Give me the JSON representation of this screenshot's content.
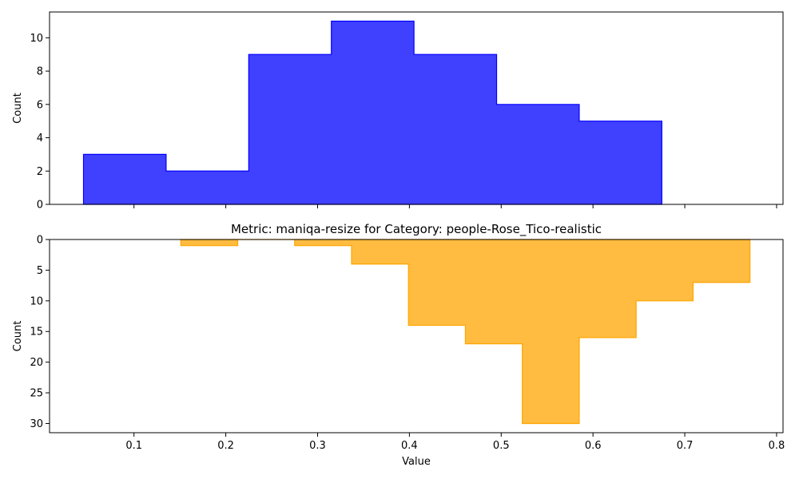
{
  "chart_data": [
    {
      "type": "histogram",
      "title": "",
      "xlabel": "",
      "ylabel": "Count",
      "xlim": [
        0.008,
        0.807
      ],
      "ylim": [
        0,
        11.55
      ],
      "y_inverted": false,
      "x_ticks": [
        0.1,
        0.2,
        0.3,
        0.4,
        0.5,
        0.6,
        0.7,
        0.8
      ],
      "x_tick_labels_visible": false,
      "y_ticks": [
        0,
        2,
        4,
        6,
        8,
        10
      ],
      "series": [
        {
          "color": "#0000ff",
          "fill_opacity": 0.75,
          "bin_edges": [
            0.045,
            0.135,
            0.225,
            0.315,
            0.405,
            0.495,
            0.585,
            0.675
          ],
          "counts": [
            3,
            2,
            9,
            11,
            9,
            6,
            5
          ]
        }
      ]
    },
    {
      "type": "histogram",
      "title": "Metric: maniqa-resize for Category: people-Rose_Tico-realistic",
      "xlabel": "Value",
      "ylabel": "Count",
      "xlim": [
        0.008,
        0.807
      ],
      "ylim": [
        0,
        31.5
      ],
      "y_inverted": true,
      "x_ticks": [
        0.1,
        0.2,
        0.3,
        0.4,
        0.5,
        0.6,
        0.7,
        0.8
      ],
      "x_tick_labels_visible": true,
      "y_ticks": [
        0,
        5,
        10,
        15,
        20,
        25,
        30
      ],
      "series": [
        {
          "color": "#ffa500",
          "fill_opacity": 0.75,
          "bin_edges": [
            0.151,
            0.213,
            0.275,
            0.337,
            0.399,
            0.461,
            0.523,
            0.585,
            0.647,
            0.709,
            0.771
          ],
          "counts": [
            1,
            0,
            1,
            4,
            14,
            17,
            30,
            16,
            10,
            7
          ]
        }
      ]
    }
  ]
}
